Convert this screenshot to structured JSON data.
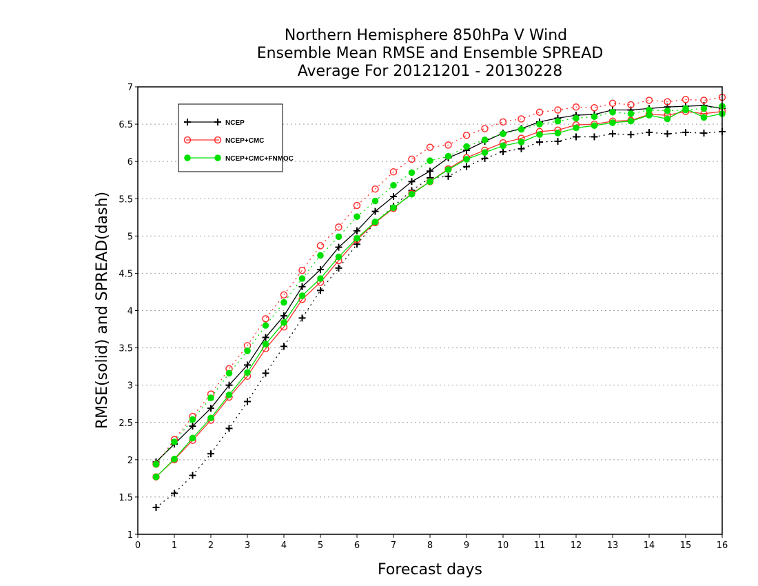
{
  "chart_data": {
    "type": "line",
    "title": "Northern Hemisphere 850hPa V Wind",
    "subtitle": "Ensemble Mean RMSE and Ensemble SPREAD",
    "period": "Average For 20121201 - 20130228",
    "xlabel": "Forecast days",
    "ylabel": "RMSE(solid) and SPREAD(dash)",
    "xlim": [
      0,
      16
    ],
    "ylim": [
      1,
      7
    ],
    "xticks": [
      0,
      1,
      2,
      3,
      4,
      5,
      6,
      7,
      8,
      9,
      10,
      11,
      12,
      13,
      14,
      15,
      16
    ],
    "yticks": [
      1,
      1.5,
      2,
      2.5,
      3,
      3.5,
      4,
      4.5,
      5,
      5.5,
      6,
      6.5,
      7
    ],
    "grid": "horizontal dotted",
    "legend_position": "upper-left",
    "x": [
      0.5,
      1,
      1.5,
      2,
      2.5,
      3,
      3.5,
      4,
      4.5,
      5,
      5.5,
      6,
      6.5,
      7,
      7.5,
      8,
      8.5,
      9,
      9.5,
      10,
      10.5,
      11,
      11.5,
      12,
      12.5,
      13,
      13.5,
      14,
      14.5,
      15,
      15.5,
      16
    ],
    "series": [
      {
        "name": "NCEP",
        "color": "#000000",
        "marker": "plus",
        "rmse": [
          1.97,
          2.21,
          2.45,
          2.69,
          3.0,
          3.27,
          3.64,
          3.93,
          4.32,
          4.55,
          4.85,
          5.07,
          5.33,
          5.53,
          5.73,
          5.87,
          6.05,
          6.15,
          6.27,
          6.38,
          6.44,
          6.53,
          6.58,
          6.62,
          6.63,
          6.69,
          6.69,
          6.71,
          6.73,
          6.74,
          6.75,
          6.71
        ],
        "spread": [
          1.36,
          1.55,
          1.79,
          2.08,
          2.42,
          2.78,
          3.16,
          3.52,
          3.9,
          4.27,
          4.57,
          4.89,
          5.18,
          5.4,
          5.61,
          5.78,
          5.8,
          5.93,
          6.04,
          6.13,
          6.17,
          6.26,
          6.27,
          6.33,
          6.33,
          6.37,
          6.36,
          6.39,
          6.37,
          6.39,
          6.38,
          6.4
        ]
      },
      {
        "name": "NCEP+CMC",
        "color": "#ff3030",
        "marker": "open-circle",
        "rmse": [
          1.77,
          2.0,
          2.26,
          2.53,
          2.84,
          3.12,
          3.49,
          3.78,
          4.15,
          4.38,
          4.67,
          4.95,
          5.18,
          5.37,
          5.57,
          5.73,
          5.9,
          6.05,
          6.15,
          6.25,
          6.31,
          6.4,
          6.42,
          6.49,
          6.5,
          6.54,
          6.55,
          6.63,
          6.62,
          6.67,
          6.64,
          6.67
        ],
        "spread": [
          1.94,
          2.27,
          2.58,
          2.88,
          3.22,
          3.53,
          3.89,
          4.21,
          4.54,
          4.87,
          5.12,
          5.41,
          5.63,
          5.86,
          6.03,
          6.19,
          6.22,
          6.35,
          6.44,
          6.53,
          6.57,
          6.66,
          6.69,
          6.73,
          6.72,
          6.78,
          6.76,
          6.82,
          6.8,
          6.83,
          6.82,
          6.86
        ]
      },
      {
        "name": "NCEP+CMC+FNMOC",
        "color": "#00e000",
        "marker": "filled-circle",
        "rmse": [
          1.77,
          2.01,
          2.29,
          2.56,
          2.87,
          3.17,
          3.55,
          3.84,
          4.2,
          4.43,
          4.72,
          4.97,
          5.19,
          5.38,
          5.56,
          5.73,
          5.89,
          6.03,
          6.12,
          6.21,
          6.26,
          6.36,
          6.38,
          6.45,
          6.48,
          6.52,
          6.54,
          6.62,
          6.57,
          6.71,
          6.59,
          6.64
        ],
        "spread": [
          1.94,
          2.24,
          2.54,
          2.83,
          3.16,
          3.46,
          3.8,
          4.11,
          4.43,
          4.74,
          4.99,
          5.26,
          5.47,
          5.68,
          5.85,
          6.01,
          6.07,
          6.2,
          6.29,
          6.37,
          6.43,
          6.5,
          6.54,
          6.58,
          6.6,
          6.66,
          6.64,
          6.69,
          6.68,
          6.69,
          6.71,
          6.74
        ]
      }
    ]
  }
}
